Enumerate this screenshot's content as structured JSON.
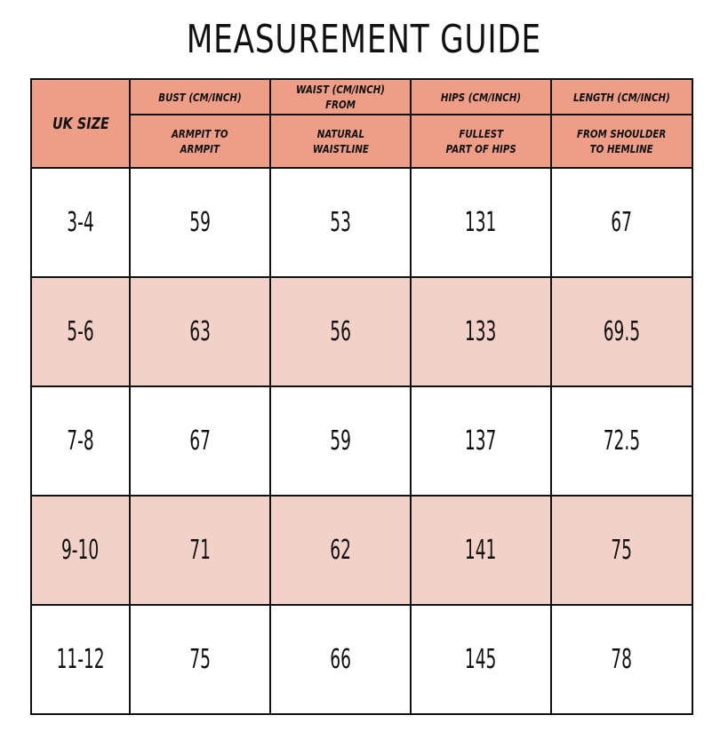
{
  "title": "MEASUREMENT GUIDE",
  "header": {
    "size_label": "UK SIZE",
    "columns": [
      {
        "top": "BUST (CM/INCH)",
        "sub_line1": "ARMPIT TO",
        "sub_line2": "ARMPIT"
      },
      {
        "top": "WAIST (CM/INCH) FROM",
        "sub_line1": "NATURAL",
        "sub_line2": "WAISTLINE"
      },
      {
        "top": "HIPS (CM/INCH)",
        "sub_line1": "FULLEST",
        "sub_line2": "PART OF HIPS"
      },
      {
        "top": "LENGTH (CM/INCH)",
        "sub_line1": "FROM SHOULDER",
        "sub_line2": "TO HEMLINE"
      }
    ]
  },
  "rows": [
    {
      "size": "3-4",
      "bust": "59",
      "waist": "53",
      "hips": "131",
      "length": "67"
    },
    {
      "size": "5-6",
      "bust": "63",
      "waist": "56",
      "hips": "133",
      "length": "69.5"
    },
    {
      "size": "7-8",
      "bust": "67",
      "waist": "59",
      "hips": "137",
      "length": "72.5"
    },
    {
      "size": "9-10",
      "bust": "71",
      "waist": "62",
      "hips": "141",
      "length": "75"
    },
    {
      "size": "11-12",
      "bust": "75",
      "waist": "66",
      "hips": "145",
      "length": "78"
    }
  ],
  "colors": {
    "header_background": "#ee9e86",
    "alternate_row_background": "#f2d1c9",
    "row_background": "#ffffff",
    "border": "#111111"
  }
}
